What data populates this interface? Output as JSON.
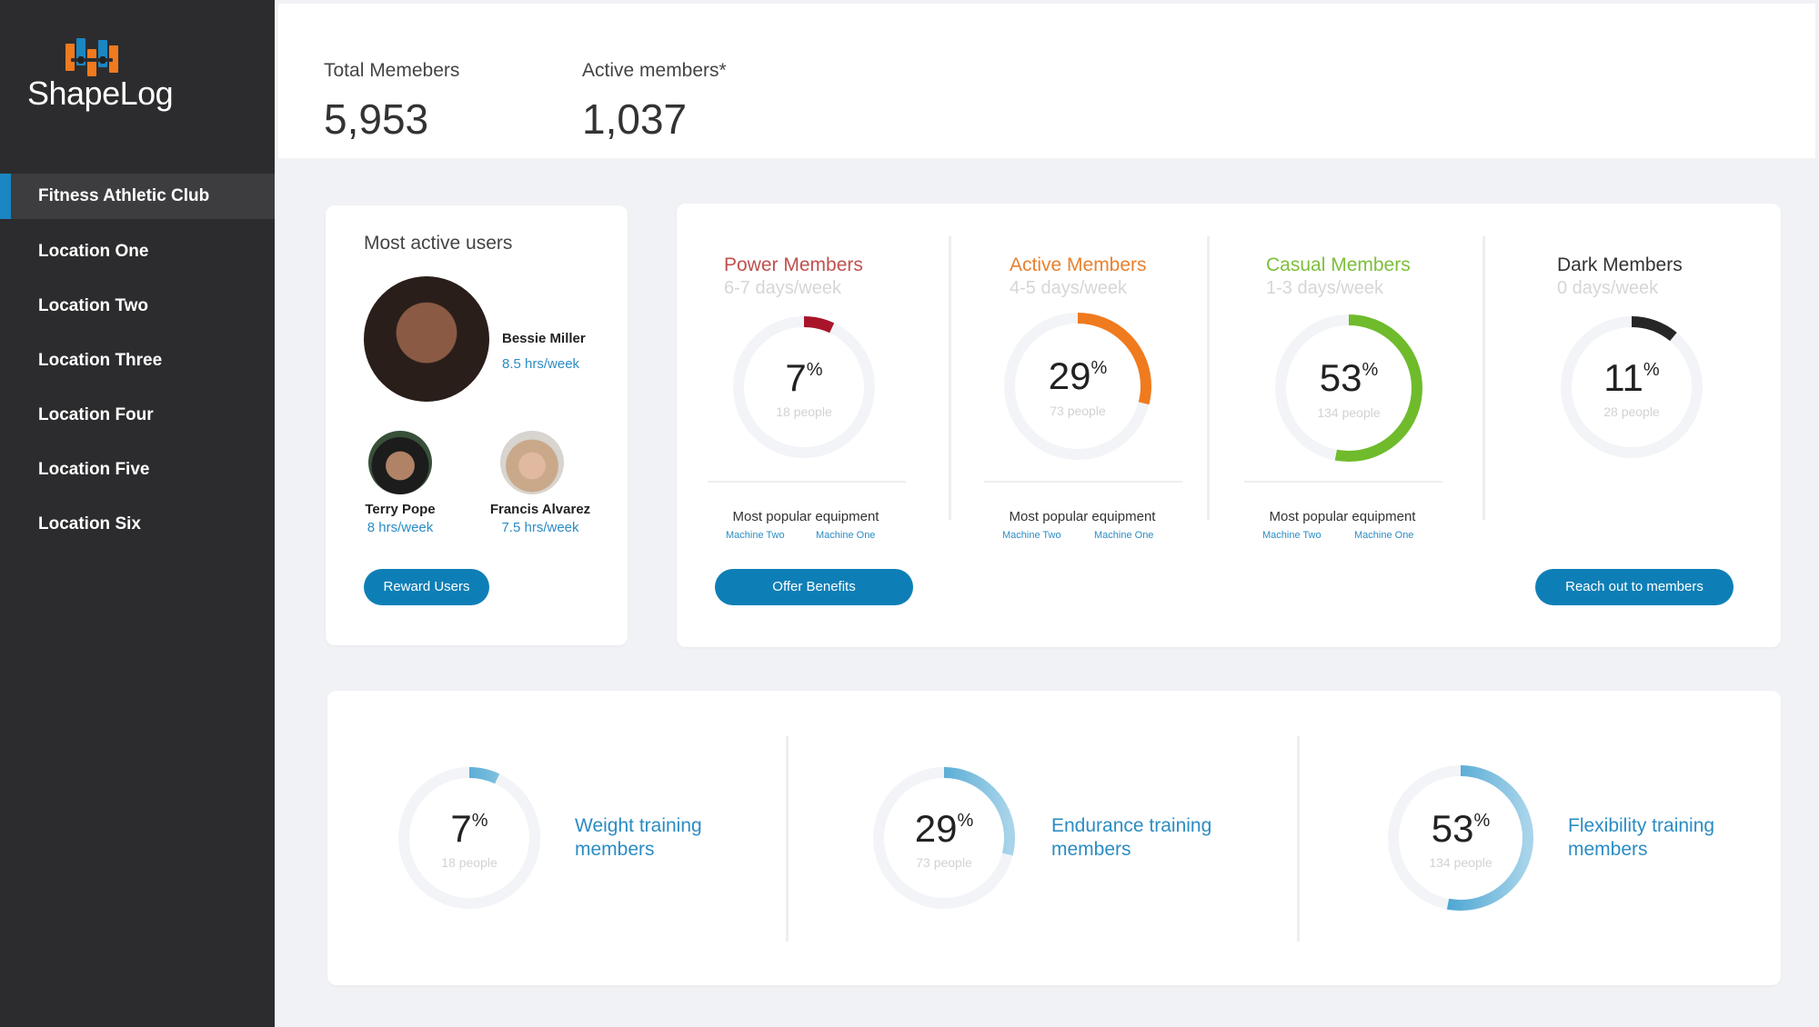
{
  "app": {
    "name": "ShapeLog"
  },
  "sidebar": {
    "items": [
      {
        "label": "Fitness Athletic Club",
        "active": true
      },
      {
        "label": "Location One"
      },
      {
        "label": "Location Two"
      },
      {
        "label": "Location Three"
      },
      {
        "label": "Location Four"
      },
      {
        "label": "Location Five"
      },
      {
        "label": "Location Six"
      }
    ]
  },
  "header": {
    "total_label": "Total Memebers",
    "total_value": "5,953",
    "active_label": "Active members*",
    "active_value": "1,037"
  },
  "users": {
    "title": "Most active users",
    "top": {
      "name": "Bessie Miller",
      "hours": "8.5 hrs/week"
    },
    "second": {
      "name": "Terry Pope",
      "hours": "8 hrs/week"
    },
    "third": {
      "name": "Francis Alvarez",
      "hours": "7.5 hrs/week"
    },
    "button": "Reward Users"
  },
  "segments": [
    {
      "title": "Power Members",
      "sub": "6-7 days/week",
      "pct": "7",
      "people": "18 people",
      "value": 0.07,
      "color": "#a8152a",
      "title_color": "#c0504d",
      "equipment_label": "Most popular equipment",
      "eq1": "Machine Two",
      "eq2": "Machine One"
    },
    {
      "title": "Active Members",
      "sub": "4-5 days/week",
      "pct": "29",
      "people": "73 people",
      "value": 0.29,
      "color": "#f07a1e",
      "title_color": "#e8812f",
      "equipment_label": "Most popular equipment",
      "eq1": "Machine Two",
      "eq2": "Machine One"
    },
    {
      "title": "Casual Members",
      "sub": "1-3 days/week",
      "pct": "53",
      "people": "134 people",
      "value": 0.53,
      "color": "#6fbb2c",
      "title_color": "#7cbf3a",
      "equipment_label": "Most popular equipment",
      "eq1": "Machine Two",
      "eq2": "Machine One"
    },
    {
      "title": "Dark Members",
      "sub": "0 days/week",
      "pct": "11",
      "people": "28 people",
      "value": 0.11,
      "color": "#262626",
      "title_color": "#333333"
    }
  ],
  "segment_buttons": {
    "offer": "Offer Benefits",
    "reach": "Reach out to members"
  },
  "training": [
    {
      "pct": "7",
      "people": "18 people",
      "value": 0.07,
      "label1": "Weight training",
      "label2": "members"
    },
    {
      "pct": "29",
      "people": "73 people",
      "value": 0.29,
      "label1": "Endurance training",
      "label2": "members"
    },
    {
      "pct": "53",
      "people": "134 people",
      "value": 0.53,
      "label1": "Flexibility training",
      "label2": "members"
    }
  ],
  "colors": {
    "accent": "#0e7fb6",
    "link": "#2b8cc4",
    "sidebar": "#2c2c2e"
  }
}
